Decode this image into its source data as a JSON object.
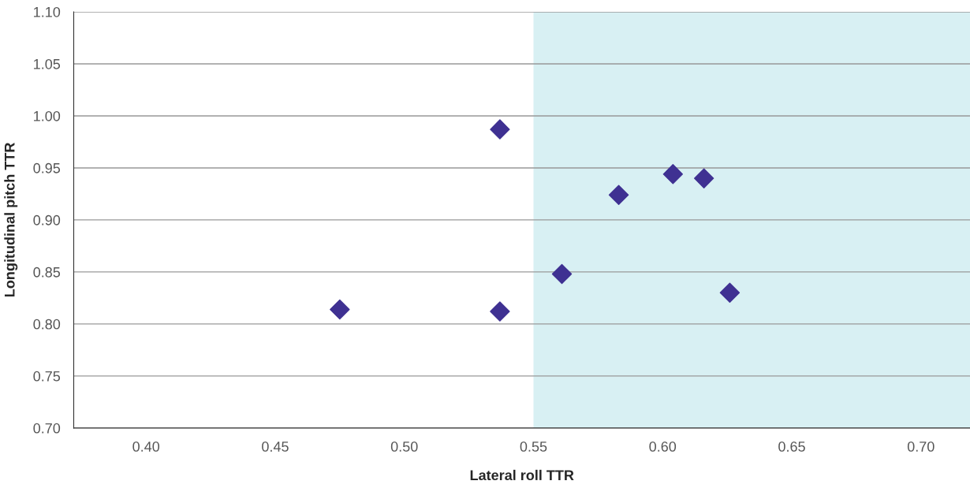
{
  "chart_data": {
    "type": "scatter",
    "xlabel": "Lateral roll TTR",
    "ylabel": "Longitudinal pitch TTR",
    "series": [
      {
        "color": "#3f3192",
        "x": [
          0.475,
          0.537,
          0.537,
          0.561,
          0.583,
          0.604,
          0.616,
          0.626
        ],
        "values": [
          0.814,
          0.812,
          0.987,
          0.848,
          0.924,
          0.944,
          0.94,
          0.83
        ]
      }
    ],
    "marker": "diamond",
    "xlim": [
      0.372,
      0.719
    ],
    "xticks": [
      {
        "value": 0.4,
        "label": "0.40"
      },
      {
        "value": 0.45,
        "label": "0.45"
      },
      {
        "value": 0.5,
        "label": "0.50"
      },
      {
        "value": 0.55,
        "label": "0.55"
      },
      {
        "value": 0.6,
        "label": "0.60"
      },
      {
        "value": 0.65,
        "label": "0.65"
      },
      {
        "value": 0.7,
        "label": "0.70"
      }
    ],
    "ylim": [
      0.7,
      1.1
    ],
    "yticks": [
      {
        "value": 0.7,
        "label": "0.70"
      },
      {
        "value": 0.75,
        "label": "0.75"
      },
      {
        "value": 0.8,
        "label": "0.80"
      },
      {
        "value": 0.85,
        "label": "0.85"
      },
      {
        "value": 0.9,
        "label": "0.90"
      },
      {
        "value": 0.95,
        "label": "0.95"
      },
      {
        "value": 1.0,
        "label": "1.00"
      },
      {
        "value": 1.05,
        "label": "1.05"
      },
      {
        "value": 1.1,
        "label": "1.10"
      }
    ],
    "bands": [
      {
        "axis": "x",
        "from": 0.55,
        "to": 0.719,
        "color": "#d8f0f3"
      }
    ],
    "grid": "y"
  }
}
